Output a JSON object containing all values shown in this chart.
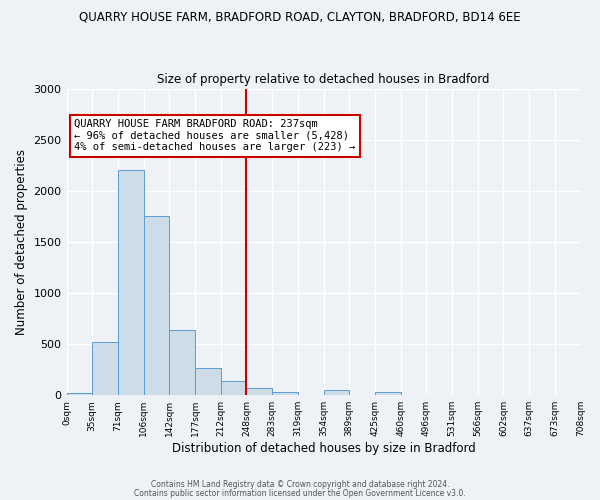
{
  "title": "QUARRY HOUSE FARM, BRADFORD ROAD, CLAYTON, BRADFORD, BD14 6EE",
  "subtitle": "Size of property relative to detached houses in Bradford",
  "xlabel": "Distribution of detached houses by size in Bradford",
  "ylabel": "Number of detached properties",
  "bin_labels": [
    "0sqm",
    "35sqm",
    "71sqm",
    "106sqm",
    "142sqm",
    "177sqm",
    "212sqm",
    "248sqm",
    "283sqm",
    "319sqm",
    "354sqm",
    "389sqm",
    "425sqm",
    "460sqm",
    "496sqm",
    "531sqm",
    "566sqm",
    "602sqm",
    "637sqm",
    "673sqm",
    "708sqm"
  ],
  "bar_values": [
    20,
    520,
    2200,
    1750,
    640,
    265,
    140,
    75,
    35,
    0,
    55,
    0,
    28,
    0,
    0,
    0,
    0,
    0,
    0,
    0
  ],
  "bar_color": "#ccdde8",
  "bar_edge_color": "#5b9bd5",
  "vline_index": 7,
  "vline_color": "#cc0000",
  "annotation_title": "QUARRY HOUSE FARM BRADFORD ROAD: 237sqm",
  "annotation_line1": "← 96% of detached houses are smaller (5,428)",
  "annotation_line2": "4% of semi-detached houses are larger (223) →",
  "annotation_box_color": "#cc0000",
  "ylim": [
    0,
    3000
  ],
  "yticks": [
    0,
    500,
    1000,
    1500,
    2000,
    2500,
    3000
  ],
  "footer1": "Contains HM Land Registry data © Crown copyright and database right 2024.",
  "footer2": "Contains public sector information licensed under the Open Government Licence v3.0.",
  "bg_color": "#eef2f7",
  "grid_color": "#ffffff"
}
